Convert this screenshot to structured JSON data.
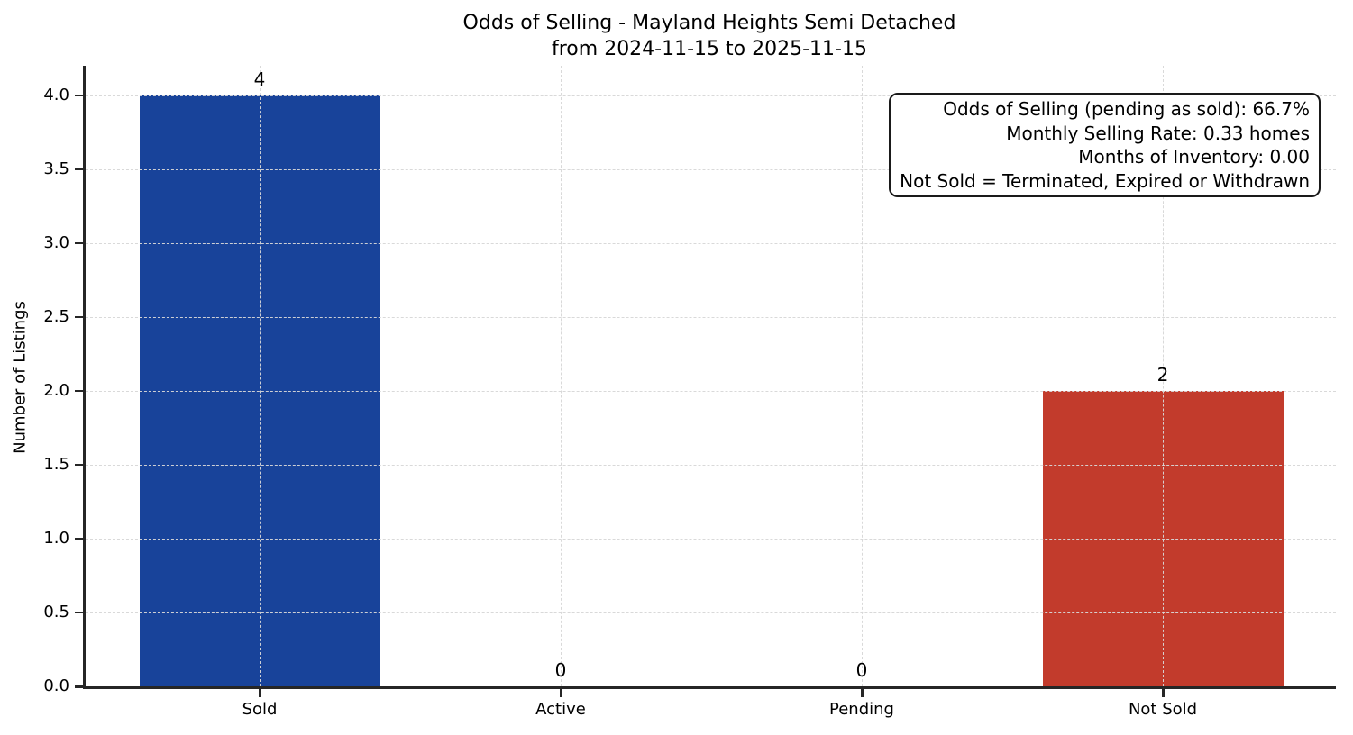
{
  "title": {
    "line1": "Odds of Selling - Mayland Heights Semi Detached",
    "line2": "from 2024-11-15 to 2025-11-15"
  },
  "annotation": {
    "lines": [
      "Odds of Selling (pending as sold): 66.7%",
      "Monthly Selling Rate: 0.33 homes",
      "Months of Inventory: 0.00",
      "Not Sold = Terminated, Expired or Withdrawn"
    ]
  },
  "chart_data": {
    "type": "bar",
    "title": "Odds of Selling - Mayland Heights Semi Detached",
    "subtitle": "from 2024-11-15 to 2025-11-15",
    "categories": [
      "Sold",
      "Active",
      "Pending",
      "Not Sold"
    ],
    "values": [
      4,
      0,
      0,
      2
    ],
    "value_labels": [
      "4",
      "0",
      "0",
      "2"
    ],
    "bar_colors": [
      "#18439a",
      null,
      null,
      "#c23b2c"
    ],
    "xlabel": "",
    "ylabel": "Number of Listings",
    "ylim": [
      0,
      4.2
    ],
    "yticks": [
      "0.0",
      "0.5",
      "1.0",
      "1.5",
      "2.0",
      "2.5",
      "3.0",
      "3.5",
      "4.0"
    ],
    "grid": "dashed gridlines on both axes, drawn above bars",
    "legend": "none"
  }
}
